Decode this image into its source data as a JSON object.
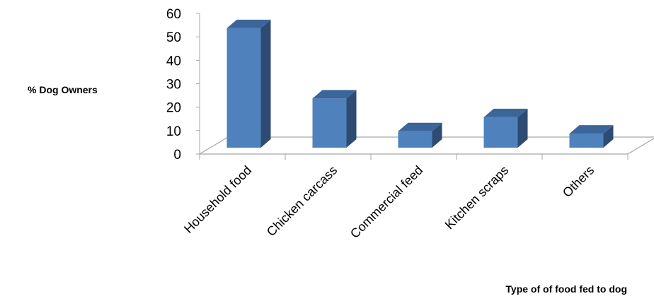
{
  "chart_data": {
    "type": "bar",
    "style": "3d-column",
    "categories": [
      "Household food",
      "Chicken carcass",
      "Commercial feed",
      "Kitchen scraps",
      "Others"
    ],
    "values": [
      51,
      21,
      7,
      13,
      6
    ],
    "xlabel": "Type of of food fed to dog",
    "ylabel": "% Dog Owners",
    "ylim": [
      0,
      60
    ],
    "yticks": [
      "0",
      "10",
      "20",
      "30",
      "40",
      "50",
      "60"
    ],
    "grid": false,
    "legend": "none",
    "colors": {
      "front": "#4F81BD",
      "side": "#2E4B73",
      "top": "#3B6699",
      "floor": "#A6A6A6"
    }
  }
}
